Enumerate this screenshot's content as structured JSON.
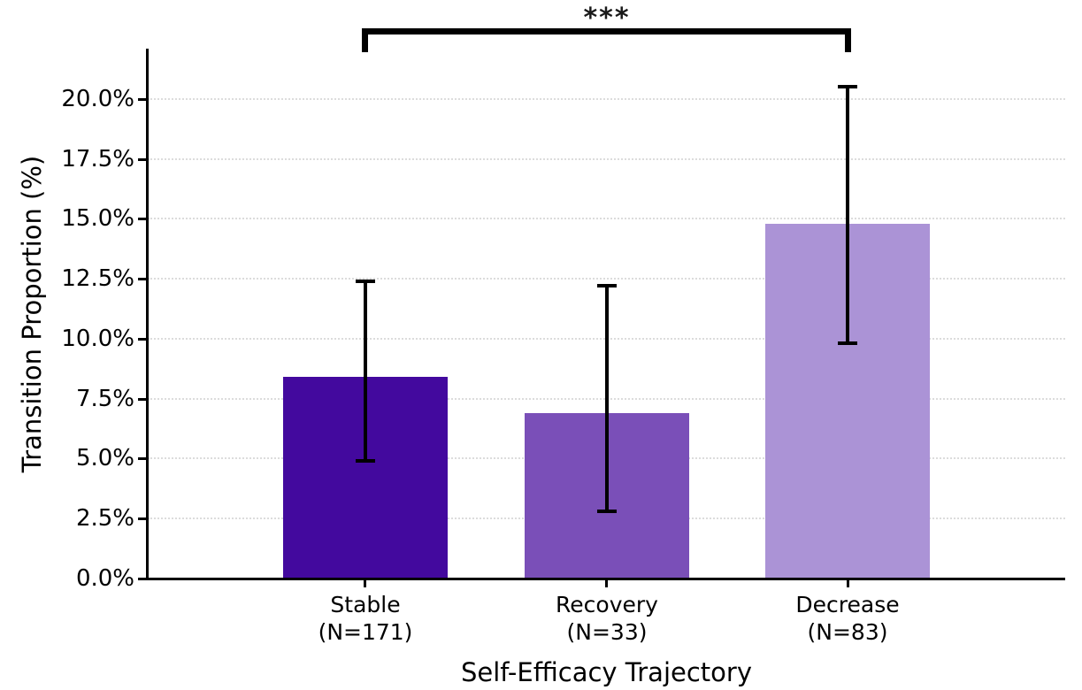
{
  "chart_data": {
    "type": "bar",
    "title": "",
    "xlabel": "Self-Efficacy Trajectory",
    "ylabel": "Transition Proportion (%)",
    "categories": [
      {
        "label": "Stable",
        "sublabel": "(N=171)"
      },
      {
        "label": "Recovery",
        "sublabel": "(N=33)"
      },
      {
        "label": "Decrease",
        "sublabel": "(N=83)"
      }
    ],
    "values": [
      8.4,
      6.9,
      14.8
    ],
    "error_low": [
      4.9,
      2.8,
      9.8
    ],
    "error_high": [
      12.4,
      12.2,
      20.5
    ],
    "bar_colors": [
      "#43099e",
      "#7a4fb8",
      "#ab93d6"
    ],
    "ylim": [
      0,
      22.1
    ],
    "xlim": [
      -0.9,
      2.9
    ],
    "yticks": [
      0,
      2.5,
      5,
      7.5,
      10,
      12.5,
      15,
      17.5,
      20
    ],
    "ytick_labels": [
      "0.0%",
      "2.5%",
      "5.0%",
      "7.5%",
      "10.0%",
      "12.5%",
      "15.0%",
      "17.5%",
      "20.0%"
    ],
    "grid": "horizontal-dotted",
    "legend": "none",
    "significance": {
      "label": "***",
      "from_index": 0,
      "to_index": 2
    }
  },
  "colors": {
    "grid": "#dcdcdc",
    "axis": "#000000",
    "background": "#ffffff"
  }
}
